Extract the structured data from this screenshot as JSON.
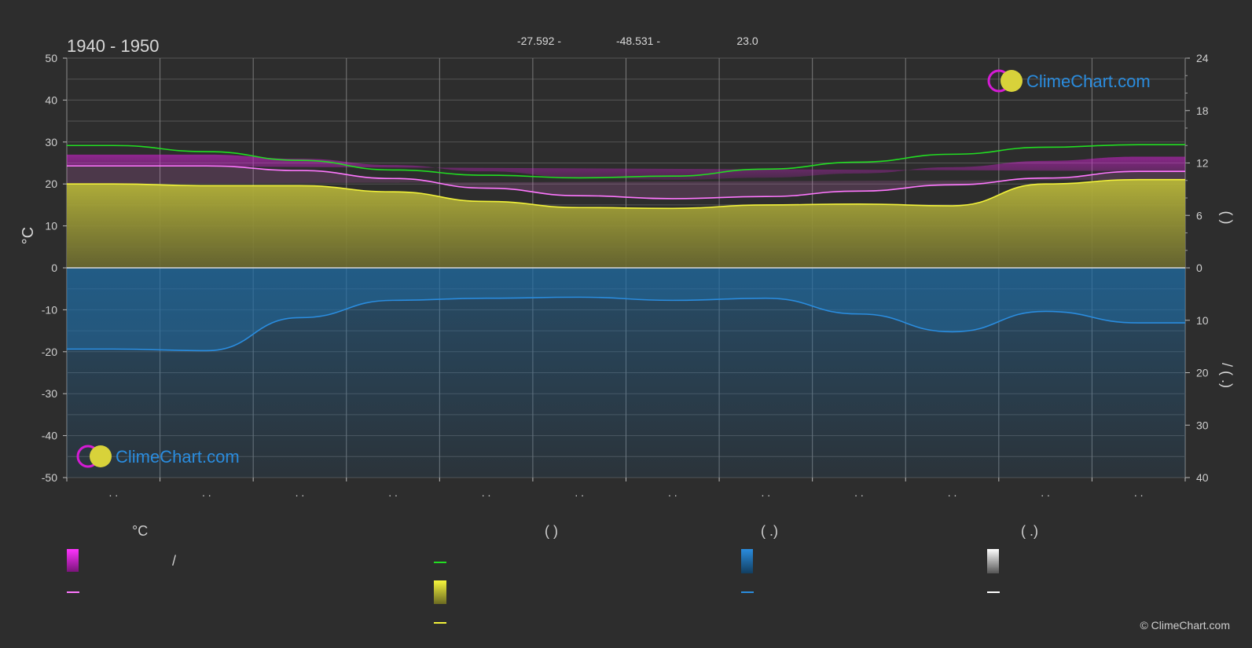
{
  "header": {
    "period": "1940 - 1950",
    "lat": "-27.592 -",
    "lon": "-48.531 -",
    "elev": "23.0"
  },
  "brand": {
    "name": "ClimeChart.com",
    "copyright": "© ClimeChart.com"
  },
  "colors": {
    "background": "#2d2d2d",
    "grid": "#5a5a5a",
    "sunshine": "#c9c73a",
    "daylight": "#22dd22",
    "temp_max": "#e020e0",
    "temp_mean": "#ff77ff",
    "sunshine_line": "#f2f23a",
    "precip": "#1f77c4",
    "precip_line": "#2a8cde",
    "snow": "#ffffff"
  },
  "chart_data": {
    "type": "line",
    "x": [
      "Jan",
      "Feb",
      "Mar",
      "Apr",
      "May",
      "Jun",
      "Jul",
      "Aug",
      "Sep",
      "Oct",
      "Nov",
      "Dec"
    ],
    "x_tick_labels": [
      ". .",
      ". .",
      ". .",
      ". .",
      ". .",
      ". .",
      ". .",
      ". .",
      ". .",
      ". .",
      ". .",
      ". ."
    ],
    "ylabel_left": "°C",
    "ylim_left": [
      -50,
      50
    ],
    "yticks_left": [
      50,
      40,
      30,
      20,
      10,
      0,
      -10,
      -20,
      -30,
      -40,
      -50
    ],
    "ylabel_right_top": "(   )",
    "ylim_right_top": [
      0,
      24
    ],
    "yticks_right_top": [
      24,
      18,
      12,
      6,
      0
    ],
    "ylabel_right_bottom": "/   (   .)",
    "ylim_right_bottom": [
      0,
      40
    ],
    "yticks_right_bottom": [
      10,
      20,
      30,
      40
    ],
    "grid": true,
    "series": [
      {
        "key": "daylight",
        "axis": "right_top",
        "color": "#22dd22",
        "values": [
          14.0,
          13.3,
          12.3,
          11.2,
          10.6,
          10.3,
          10.5,
          11.3,
          12.1,
          13.0,
          13.8,
          14.1
        ]
      },
      {
        "key": "temp_mean",
        "axis": "left",
        "color": "#ff77ff",
        "values": [
          24.3,
          24.3,
          23.2,
          21.3,
          19.0,
          17.2,
          16.5,
          17.0,
          18.3,
          19.8,
          21.4,
          23.0
        ]
      },
      {
        "key": "sunshine",
        "axis": "right_top",
        "color": "#f2f23a",
        "values": [
          9.6,
          9.4,
          9.4,
          8.7,
          7.6,
          6.9,
          6.8,
          7.2,
          7.3,
          7.1,
          9.6,
          10.1
        ]
      },
      {
        "key": "precip",
        "axis": "right_bottom",
        "color": "#2a8cde",
        "values": [
          15.5,
          15.8,
          9.5,
          6.2,
          5.8,
          5.6,
          6.2,
          5.8,
          8.8,
          12.2,
          8.3,
          10.5
        ]
      }
    ],
    "max_temp_band": [
      27.0,
      27.0,
      26.0,
      24.5,
      23.0,
      21.5,
      21.0,
      21.5,
      22.5,
      24.0,
      25.5,
      26.5
    ]
  },
  "legend": {
    "sections": [
      {
        "title": "°C"
      },
      {
        "title": "(          )"
      },
      {
        "title": "(    .)"
      },
      {
        "title": "(    .)"
      }
    ],
    "temp_label": "/"
  }
}
